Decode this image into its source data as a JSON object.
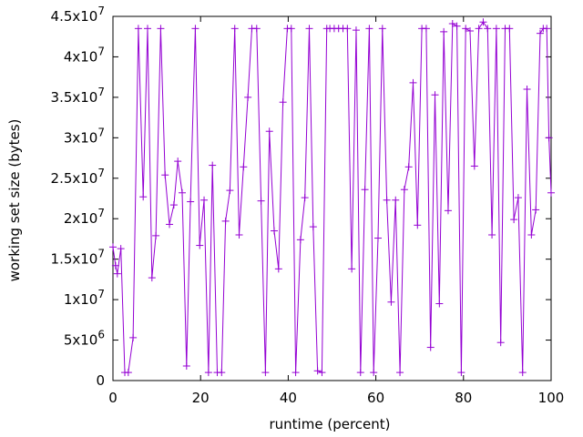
{
  "chart_data": {
    "type": "line",
    "xlabel": "runtime (percent)",
    "ylabel": "working set size (bytes)",
    "xlim": [
      0,
      100
    ],
    "ylim": [
      0,
      45000000
    ],
    "grid": false,
    "legend": "none",
    "marker": "plus",
    "color": "#9400D3",
    "x_ticks": [
      {
        "value": 0,
        "label": "0"
      },
      {
        "value": 20,
        "label": "20"
      },
      {
        "value": 40,
        "label": "40"
      },
      {
        "value": 60,
        "label": "60"
      },
      {
        "value": 80,
        "label": "80"
      },
      {
        "value": 100,
        "label": "100"
      }
    ],
    "y_ticks": [
      {
        "value": 0,
        "mantissa": "0",
        "exp": ""
      },
      {
        "value": 5000000,
        "mantissa": "5x10",
        "exp": "6"
      },
      {
        "value": 10000000,
        "mantissa": "1x10",
        "exp": "7"
      },
      {
        "value": 15000000,
        "mantissa": "1.5x10",
        "exp": "7"
      },
      {
        "value": 20000000,
        "mantissa": "2x10",
        "exp": "7"
      },
      {
        "value": 25000000,
        "mantissa": "2.5x10",
        "exp": "7"
      },
      {
        "value": 30000000,
        "mantissa": "3x10",
        "exp": "7"
      },
      {
        "value": 35000000,
        "mantissa": "3.5x10",
        "exp": "7"
      },
      {
        "value": 40000000,
        "mantissa": "4x10",
        "exp": "7"
      },
      {
        "value": 45000000,
        "mantissa": "4.5x10",
        "exp": "7"
      }
    ],
    "series": [
      {
        "points": [
          [
            0,
            16500000
          ],
          [
            0.6,
            14200000
          ],
          [
            1,
            13200000
          ],
          [
            1.8,
            16300000
          ],
          [
            2.7,
            1000000
          ],
          [
            3.5,
            1000000
          ],
          [
            4.6,
            5300000
          ],
          [
            5.8,
            43500000
          ],
          [
            6.9,
            22700000
          ],
          [
            7.9,
            43500000
          ],
          [
            8.9,
            12700000
          ],
          [
            9.8,
            17900000
          ],
          [
            10.9,
            43500000
          ],
          [
            11.9,
            25400000
          ],
          [
            12.9,
            19300000
          ],
          [
            13.9,
            21700000
          ],
          [
            14.8,
            27100000
          ],
          [
            15.8,
            23200000
          ],
          [
            16.8,
            1800000
          ],
          [
            17.7,
            22100000
          ],
          [
            18.8,
            43500000
          ],
          [
            19.8,
            16700000
          ],
          [
            20.8,
            22300000
          ],
          [
            21.8,
            1000000
          ],
          [
            22.7,
            26600000
          ],
          [
            23.8,
            1000000
          ],
          [
            24.8,
            1000000
          ],
          [
            25.7,
            19700000
          ],
          [
            26.7,
            23500000
          ],
          [
            27.8,
            43500000
          ],
          [
            28.8,
            18000000
          ],
          [
            29.8,
            26400000
          ],
          [
            30.8,
            35000000
          ],
          [
            31.7,
            43500000
          ],
          [
            32.8,
            43500000
          ],
          [
            33.8,
            22200000
          ],
          [
            34.8,
            1000000
          ],
          [
            35.7,
            30800000
          ],
          [
            36.8,
            18500000
          ],
          [
            37.8,
            13800000
          ],
          [
            38.8,
            34400000
          ],
          [
            39.8,
            43500000
          ],
          [
            40.7,
            43500000
          ],
          [
            41.7,
            1000000
          ],
          [
            42.8,
            17400000
          ],
          [
            43.8,
            22600000
          ],
          [
            44.8,
            43500000
          ],
          [
            45.7,
            19000000
          ],
          [
            46.7,
            1200000
          ],
          [
            47.7,
            1000000
          ],
          [
            48.8,
            43500000
          ],
          [
            49.5,
            43500000
          ],
          [
            50.5,
            43500000
          ],
          [
            51.5,
            43500000
          ],
          [
            52.5,
            43500000
          ],
          [
            53.5,
            43500000
          ],
          [
            54.5,
            13800000
          ],
          [
            55.5,
            43300000
          ],
          [
            56.5,
            1000000
          ],
          [
            57.5,
            23600000
          ],
          [
            58.5,
            43500000
          ],
          [
            59.5,
            1000000
          ],
          [
            60.5,
            17600000
          ],
          [
            61.5,
            43500000
          ],
          [
            62.5,
            22300000
          ],
          [
            63.5,
            9700000
          ],
          [
            64.5,
            22300000
          ],
          [
            65.5,
            1000000
          ],
          [
            66.5,
            23600000
          ],
          [
            67.5,
            26400000
          ],
          [
            68.5,
            36800000
          ],
          [
            69.5,
            19200000
          ],
          [
            70.5,
            43500000
          ],
          [
            71.5,
            43500000
          ],
          [
            72.5,
            4100000
          ],
          [
            73.5,
            35300000
          ],
          [
            74.5,
            9500000
          ],
          [
            75.5,
            43100000
          ],
          [
            76.5,
            21000000
          ],
          [
            77.5,
            44100000
          ],
          [
            78.5,
            43800000
          ],
          [
            79.5,
            1000000
          ],
          [
            80.5,
            43500000
          ],
          [
            81.5,
            43200000
          ],
          [
            82.5,
            26500000
          ],
          [
            83.5,
            43500000
          ],
          [
            84.5,
            44300000
          ],
          [
            85.5,
            43500000
          ],
          [
            86.5,
            18000000
          ],
          [
            87.5,
            43500000
          ],
          [
            88.5,
            4700000
          ],
          [
            89.5,
            43500000
          ],
          [
            90.5,
            43500000
          ],
          [
            91.5,
            19900000
          ],
          [
            92.5,
            22600000
          ],
          [
            93.5,
            1000000
          ],
          [
            94.5,
            36000000
          ],
          [
            95.5,
            18000000
          ],
          [
            96.5,
            21100000
          ],
          [
            97.5,
            42900000
          ],
          [
            98.2,
            43500000
          ],
          [
            99,
            43500000
          ],
          [
            99.5,
            30000000
          ],
          [
            100,
            23200000
          ]
        ]
      }
    ]
  }
}
